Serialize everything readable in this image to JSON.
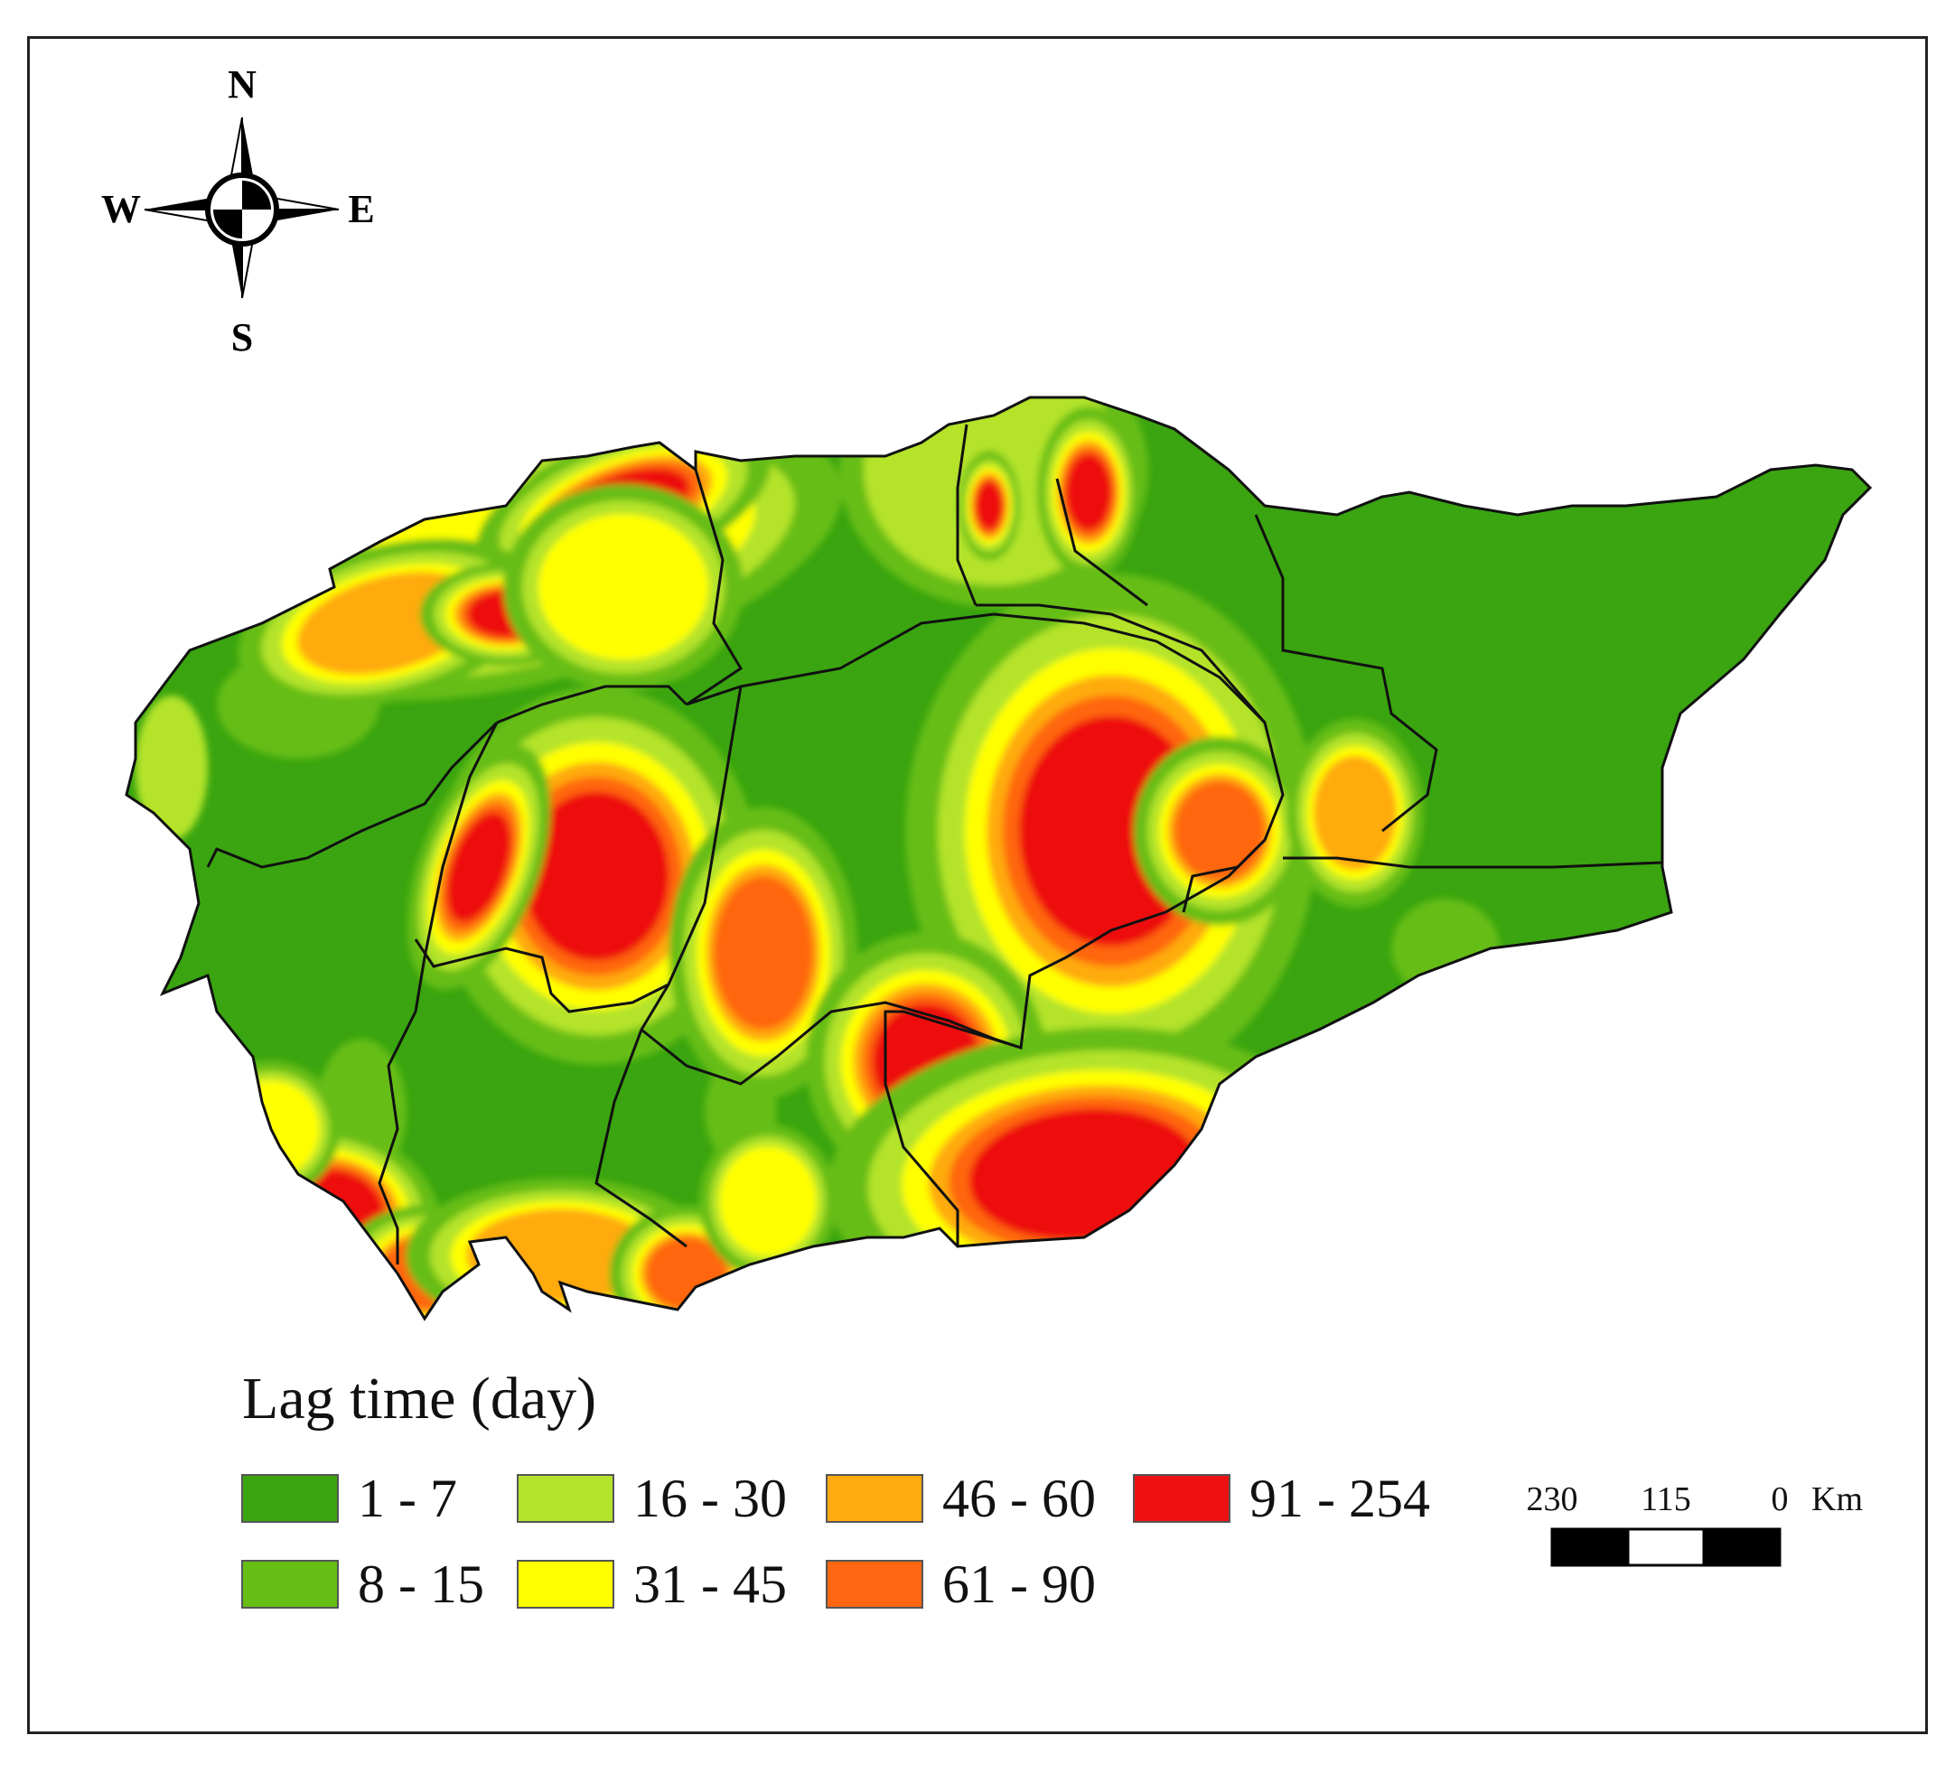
{
  "compass": {
    "north": "N",
    "south": "S",
    "east": "E",
    "west": "W"
  },
  "legend": {
    "title": "Lag time (day)",
    "items": [
      {
        "label": "1 - 7",
        "color": "#3aa510"
      },
      {
        "label": "8 - 15",
        "color": "#66bd14"
      },
      {
        "label": "16 - 30",
        "color": "#b4e32c"
      },
      {
        "label": "31 - 45",
        "color": "#ffff00"
      },
      {
        "label": "46 - 60",
        "color": "#ffaa11"
      },
      {
        "label": "61 - 90",
        "color": "#ff6611"
      },
      {
        "label": "91 - 254",
        "color": "#ee1111"
      }
    ]
  },
  "scale_bar": {
    "labels": [
      "230",
      "115",
      "0"
    ],
    "unit": "Km"
  },
  "colors": {
    "border": "#111111",
    "background": "#ffffff"
  }
}
